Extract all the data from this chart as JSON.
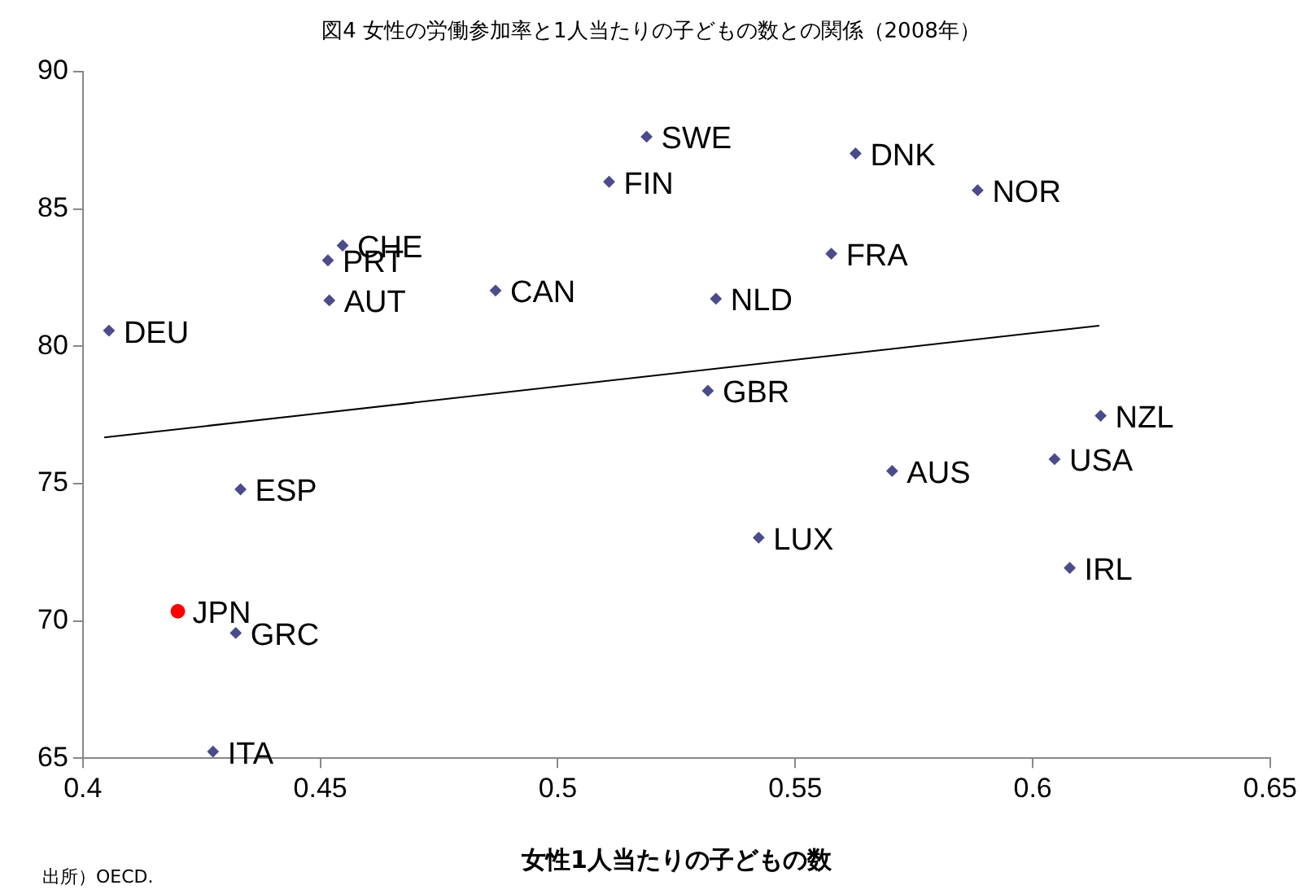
{
  "chart_data": {
    "type": "scatter",
    "title": "図4 女性の労働参加率と1人当たりの子どもの数との関係（2008年）",
    "xlabel": "女性1人当たりの子どもの数",
    "xlim": [
      0.4,
      0.65
    ],
    "xticks": [
      0.4,
      0.45,
      0.5,
      0.55,
      0.6,
      0.65
    ],
    "ylim": [
      65,
      90
    ],
    "yticks": [
      65,
      70,
      75,
      80,
      85,
      90
    ],
    "grid": false,
    "legend": false,
    "series": [
      {
        "type": "scatter",
        "marker": "diamond",
        "color": "#4b4b8c",
        "x": [
          0.4055,
          0.4322,
          0.4274,
          0.4332,
          0.4547,
          0.4516,
          0.4519,
          0.4869,
          0.5108,
          0.5187,
          0.5627,
          0.5884,
          0.5576,
          0.5333,
          0.5316,
          0.6143,
          0.6046,
          0.5704,
          0.5423,
          0.6078
        ],
        "values": [
          80.57,
          69.56,
          65.24,
          74.79,
          83.67,
          83.13,
          81.67,
          82.03,
          85.99,
          87.63,
          87.02,
          85.68,
          83.37,
          81.73,
          78.38,
          77.47,
          75.89,
          75.46,
          73.03,
          71.93
        ]
      },
      {
        "type": "scatter",
        "marker": "circle",
        "color": "#ff0000",
        "x": [
          0.42
        ],
        "values": [
          70.35
        ]
      },
      {
        "type": "line",
        "marker": "none",
        "color": "#000000",
        "x": [
          0.4045,
          0.614
        ],
        "values": [
          76.68,
          80.75
        ]
      }
    ],
    "annotations": [
      {
        "text": "DEU",
        "x": 0.4055,
        "y": 80.57
      },
      {
        "text": "JPN",
        "x": 0.42,
        "y": 70.35
      },
      {
        "text": "GRC",
        "x": 0.4322,
        "y": 69.56
      },
      {
        "text": "ITA",
        "x": 0.4274,
        "y": 65.24
      },
      {
        "text": "ESP",
        "x": 0.4332,
        "y": 74.79
      },
      {
        "text": "CHE",
        "x": 0.4547,
        "y": 83.67
      },
      {
        "text": "PRT",
        "x": 0.4516,
        "y": 83.13
      },
      {
        "text": "AUT",
        "x": 0.4519,
        "y": 81.67
      },
      {
        "text": "CAN",
        "x": 0.4869,
        "y": 82.03
      },
      {
        "text": "FIN",
        "x": 0.5108,
        "y": 85.99
      },
      {
        "text": "SWE",
        "x": 0.5187,
        "y": 87.63
      },
      {
        "text": "DNK",
        "x": 0.5627,
        "y": 87.02
      },
      {
        "text": "NOR",
        "x": 0.5884,
        "y": 85.68
      },
      {
        "text": "FRA",
        "x": 0.5576,
        "y": 83.37
      },
      {
        "text": "NLD",
        "x": 0.5333,
        "y": 81.73
      },
      {
        "text": "GBR",
        "x": 0.5316,
        "y": 78.38
      },
      {
        "text": "NZL",
        "x": 0.6143,
        "y": 77.47
      },
      {
        "text": "USA",
        "x": 0.6046,
        "y": 75.89
      },
      {
        "text": "AUS",
        "x": 0.5704,
        "y": 75.46
      },
      {
        "text": "LUX",
        "x": 0.5423,
        "y": 73.03
      },
      {
        "text": "IRL",
        "x": 0.6078,
        "y": 71.93
      },
      "出所）OECD."
    ]
  }
}
